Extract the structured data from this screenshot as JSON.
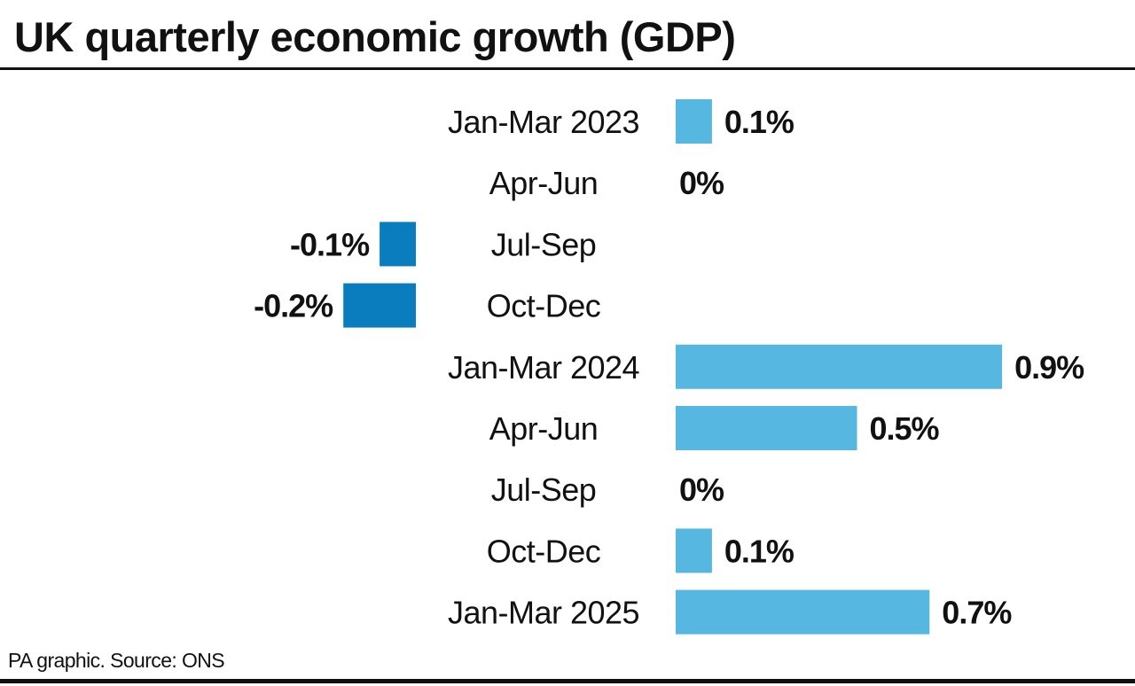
{
  "header": {
    "title": "UK quarterly economic growth (GDP)"
  },
  "footer": {
    "source": "PA graphic. Source: ONS"
  },
  "colors": {
    "positive": "#56B7E0",
    "negative": "#0A7DBE",
    "text": "#111111"
  },
  "chart_data": {
    "type": "bar",
    "orientation": "horizontal",
    "title": "UK quarterly economic growth (GDP)",
    "xlabel": "",
    "ylabel": "",
    "unit": "%",
    "grid": false,
    "legend": "none",
    "categories": [
      "Jan-Mar 2023",
      "Apr-Jun",
      "Jul-Sep",
      "Oct-Dec",
      "Jan-Mar 2024",
      "Apr-Jun",
      "Jul-Sep",
      "Oct-Dec",
      "Jan-Mar 2025"
    ],
    "values": [
      0.1,
      0,
      -0.1,
      -0.2,
      0.9,
      0.5,
      0,
      0.1,
      0.7
    ],
    "labels": [
      "0.1%",
      "0%",
      "-0.1%",
      "-0.2%",
      "0.9%",
      "0.5%",
      "0%",
      "0.1%",
      "0.7%"
    ],
    "xlim": [
      -0.2,
      0.9
    ]
  }
}
